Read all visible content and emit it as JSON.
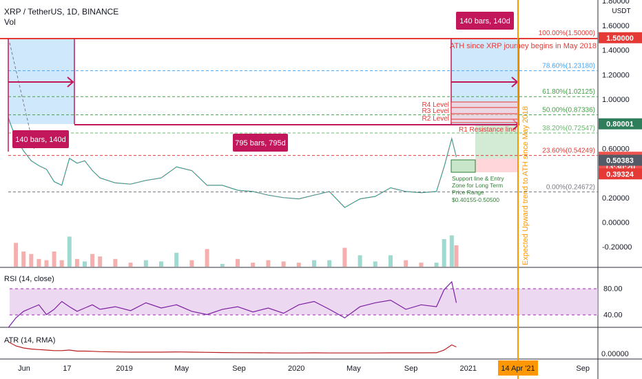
{
  "header": {
    "title": "XRP / TetherUS, 1D, BINANCE",
    "vol": "Vol"
  },
  "colors": {
    "accent_orange": "#ff9800",
    "red": "#e53935",
    "pink": "#c2185b",
    "purple": "#9c27b0",
    "green": "#43a047",
    "blue_fill": "#bbdefb"
  },
  "annotations": {
    "bars_left": "140 bars, 140d",
    "bars_middle": "795 bars, 795d",
    "bars_right": "140 bars, 140d",
    "ath_text": "ATH since XRP journey begins in May 2018",
    "r4": "R4 Level",
    "r3": "R3 Level",
    "r2": "R2 Level",
    "r1": "R1 Resistance line",
    "support": [
      "Support line & Entry",
      "Zone for Long Term",
      "Price Range",
      "$0.40155-0.50500"
    ],
    "vertical": "Expected Upward trend to ATH since May 2018",
    "date_marker": "14 Apr '21"
  },
  "fib_levels": [
    {
      "label": "100.00%(1.50000)",
      "value": 1.5,
      "color": "#e53935"
    },
    {
      "label": "78.60%(1.23180)",
      "value": 1.2318,
      "color": "#42a5f5"
    },
    {
      "label": "61.80%(1.02125)",
      "value": 1.02125,
      "color": "#43a047"
    },
    {
      "label": "50.00%(0.87336)",
      "value": 0.87336,
      "color": "#43a047"
    },
    {
      "label": "38.20%(0.72547)",
      "value": 0.72547,
      "color": "#66bb6a"
    },
    {
      "label": "23.60%(0.54249)",
      "value": 0.54249,
      "color": "#e53935"
    },
    {
      "label": "0.00%(0.24672)",
      "value": 0.24672,
      "color": "#787b86"
    }
  ],
  "price_axis": {
    "unit": "USDT",
    "ticks": [
      "1.80000",
      "1.60000",
      "1.40000",
      "1.20000",
      "1.00000",
      "0.80000",
      "0.60000",
      "0.40000",
      "0.20000",
      "0.00000",
      "-0.20000"
    ],
    "tick_values": [
      1.8,
      1.6,
      1.4,
      1.2,
      1.0,
      0.8,
      0.6,
      0.4,
      0.2,
      0.0,
      -0.2
    ],
    "badges": [
      {
        "text": "1.50000",
        "value": 1.5,
        "bg": "#e53935",
        "fg": "#ffffff"
      },
      {
        "text": "0.80001",
        "value": 0.80001,
        "bg": "#2e7d5b",
        "fg": "#ffffff"
      },
      {
        "text": "0.52860",
        "value": 0.5286,
        "bg": "#ef5350",
        "fg": "#ffffff"
      },
      {
        "text": "13:30:20",
        "value": 0.452,
        "bg": "#ef5350",
        "fg": "#ffffff"
      },
      {
        "text": "0.50383",
        "value": 0.50383,
        "bg": "#555b66",
        "fg": "#ffffff"
      },
      {
        "text": "0.39324",
        "value": 0.39324,
        "bg": "#e53935",
        "fg": "#ffffff"
      }
    ]
  },
  "time_axis": {
    "labels": [
      "Jun",
      "17",
      "2019",
      "May",
      "Sep",
      "2020",
      "May",
      "Sep",
      "2021",
      "May",
      "Sep"
    ],
    "months": [
      0,
      3,
      7,
      11,
      15,
      19,
      23,
      27,
      31,
      35,
      39
    ]
  },
  "rsi": {
    "label": "RSI (14, close)",
    "ticks": [
      "80.00",
      "40.00"
    ],
    "tick_values": [
      80,
      40
    ],
    "band": [
      30,
      70
    ]
  },
  "atr": {
    "label": "ATR (14, RMA)",
    "ticks": [
      "0.00000"
    ]
  },
  "chart_data": {
    "type": "line",
    "title": "XRP / TetherUS, 1D, BINANCE",
    "xlabel": "",
    "ylabel": "USDT",
    "ylim": [
      -0.3,
      1.85
    ],
    "x_months_since_may_2018": [
      0,
      0.5,
      1,
      1.5,
      2,
      2.5,
      3,
      3.5,
      4,
      4.5,
      5,
      5.5,
      6,
      7,
      8,
      9,
      10,
      11,
      12,
      13,
      14,
      15,
      16,
      17,
      18,
      19,
      20,
      21,
      22,
      23,
      24,
      25,
      26,
      27,
      28,
      28.5,
      29,
      29.3
    ],
    "series": [
      {
        "values": [
          0.85,
          0.68,
          0.58,
          0.5,
          0.46,
          0.43,
          0.33,
          0.3,
          0.52,
          0.48,
          0.5,
          0.42,
          0.36,
          0.32,
          0.31,
          0.34,
          0.36,
          0.45,
          0.42,
          0.3,
          0.3,
          0.26,
          0.25,
          0.22,
          0.2,
          0.19,
          0.22,
          0.25,
          0.12,
          0.19,
          0.21,
          0.28,
          0.25,
          0.24,
          0.25,
          0.45,
          0.68,
          0.53
        ]
      }
    ],
    "rsi_values": [
      20,
      35,
      45,
      50,
      55,
      40,
      48,
      60,
      52,
      45,
      50,
      55,
      48,
      52,
      46,
      58,
      50,
      55,
      45,
      40,
      48,
      52,
      44,
      50,
      42,
      55,
      60,
      48,
      35,
      52,
      58,
      62,
      48,
      55,
      52,
      78,
      90,
      58
    ],
    "atr_values": [
      0.12,
      0.08,
      0.06,
      0.05,
      0.045,
      0.04,
      0.035,
      0.035,
      0.04,
      0.03,
      0.03,
      0.028,
      0.025,
      0.022,
      0.02,
      0.02,
      0.02,
      0.022,
      0.02,
      0.018,
      0.016,
      0.015,
      0.014,
      0.013,
      0.012,
      0.012,
      0.013,
      0.012,
      0.012,
      0.012,
      0.012,
      0.013,
      0.013,
      0.013,
      0.014,
      0.04,
      0.09,
      0.07
    ]
  }
}
